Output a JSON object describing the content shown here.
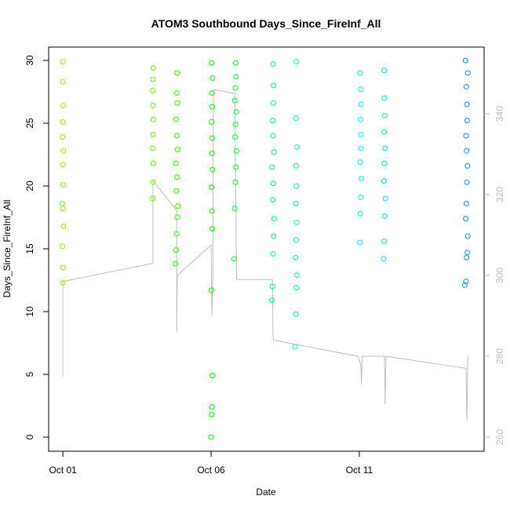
{
  "chart_data": {
    "type": "scatter",
    "title": "ATOM3 Southbound Days_Since_FireInf_All",
    "x_label": "Date",
    "y_label": "Days_Since_FireInf_All",
    "xlim": [
      0.52,
      15.21
    ],
    "xticks": [
      {
        "value": 1,
        "label": "Oct 01"
      },
      {
        "value": 6,
        "label": "Oct 06"
      },
      {
        "value": 11,
        "label": "Oct 11"
      }
    ],
    "ylim": [
      -1.12,
      31.06
    ],
    "yticks": [
      0,
      5,
      10,
      15,
      20,
      25,
      30
    ],
    "y2lim": [
      256.5,
      356.5
    ],
    "y2ticks": [
      260,
      280,
      300,
      320,
      340
    ],
    "groups": [
      {
        "color": "#80ff00",
        "x": [
          1.0,
          1.01,
          0.99,
          1.02,
          1.0,
          0.98,
          1.01,
          1.0,
          1.02,
          0.99,
          1.0,
          1.01,
          1.0,
          1.0
        ],
        "y": [
          12.3,
          13.5,
          15.2,
          16.8,
          18.2,
          18.6,
          20.1,
          21.7,
          22.8,
          23.9,
          25.1,
          26.4,
          28.3,
          29.9
        ]
      },
      {
        "color": "#66ff00",
        "x": [
          4.03,
          4.04,
          4.05,
          4.03,
          4.04,
          4.05,
          4.04,
          4.03,
          4.04,
          4.05
        ],
        "y": [
          19.0,
          20.3,
          21.8,
          23.0,
          24.1,
          25.3,
          26.4,
          27.6,
          28.5,
          29.4
        ]
      },
      {
        "color": "#33ff00",
        "x": [
          4.8,
          4.82,
          4.84,
          4.86,
          4.88,
          4.83,
          4.85,
          4.81,
          4.87,
          4.84,
          4.82,
          4.86,
          4.84,
          4.85
        ],
        "y": [
          13.8,
          14.9,
          16.2,
          17.5,
          18.4,
          19.6,
          20.7,
          21.8,
          22.9,
          24.0,
          25.3,
          26.6,
          27.4,
          29.0
        ]
      },
      {
        "color": "#00ff00",
        "x": [
          6.0,
          6.02,
          6.03,
          6.05,
          6.01,
          6.04,
          6.03,
          6.02,
          6.05,
          6.03,
          6.04,
          6.02,
          6.04,
          6.03,
          6.05,
          6.02
        ],
        "y": [
          0.0,
          1.8,
          2.4,
          4.9,
          11.7,
          16.6,
          18.0,
          19.9,
          21.3,
          22.6,
          23.8,
          25.1,
          26.3,
          27.4,
          28.6,
          29.8
        ]
      },
      {
        "color": "#00ff33",
        "x": [
          6.78,
          6.8,
          6.82,
          6.84,
          6.86,
          6.81,
          6.83,
          6.85,
          6.8,
          6.82,
          6.84,
          6.83
        ],
        "y": [
          14.2,
          18.2,
          20.3,
          21.5,
          22.8,
          23.9,
          24.9,
          25.9,
          26.8,
          27.8,
          28.7,
          29.8
        ]
      },
      {
        "color": "#00ff99",
        "x": [
          8.05,
          8.07,
          8.09,
          8.11,
          8.13,
          8.08,
          8.1,
          8.06,
          8.12,
          8.09,
          8.08,
          8.1,
          8.11,
          8.09
        ],
        "y": [
          10.9,
          12.0,
          14.6,
          16.0,
          17.4,
          18.9,
          20.2,
          21.5,
          22.7,
          24.0,
          25.2,
          26.6,
          28.0,
          29.7
        ]
      },
      {
        "color": "#00ffbf",
        "x": [
          8.83,
          8.86,
          8.88,
          8.9,
          8.85,
          8.87,
          8.89,
          8.86,
          8.88,
          8.87,
          8.9,
          8.86,
          8.88
        ],
        "y": [
          7.2,
          9.8,
          11.9,
          12.9,
          14.3,
          15.7,
          17.1,
          18.6,
          20.0,
          21.6,
          23.1,
          25.4,
          29.9
        ]
      },
      {
        "color": "#00ffff",
        "x": [
          11.02,
          11.04,
          11.05,
          11.07,
          11.03,
          11.06,
          11.05,
          11.04,
          11.06,
          11.05,
          11.03
        ],
        "y": [
          15.5,
          17.8,
          19.1,
          20.6,
          21.9,
          23.0,
          24.1,
          25.3,
          26.5,
          27.7,
          29.0
        ]
      },
      {
        "color": "#00e5ff",
        "x": [
          11.82,
          11.84,
          11.86,
          11.88,
          11.83,
          11.85,
          11.87,
          11.84,
          11.86,
          11.85,
          11.84
        ],
        "y": [
          14.2,
          15.6,
          17.6,
          19.0,
          20.4,
          21.8,
          23.0,
          24.3,
          25.6,
          27.0,
          29.2
        ]
      },
      {
        "color": "#0099ff",
        "x": [
          14.56,
          14.6,
          14.62,
          14.64,
          14.66,
          14.59,
          14.61,
          14.63,
          14.65,
          14.62,
          14.6,
          14.64,
          14.63,
          14.61,
          14.66,
          14.58
        ],
        "y": [
          12.1,
          12.4,
          14.3,
          14.7,
          16.0,
          17.4,
          18.6,
          20.3,
          21.6,
          22.8,
          24.0,
          25.2,
          26.5,
          27.9,
          29.0,
          30.0
        ]
      }
    ],
    "line": {
      "color": "#bebebe",
      "axis": "y2",
      "x": [
        1.0,
        1.0,
        4.04,
        4.04,
        4.84,
        4.84,
        4.86,
        6.0,
        6.03,
        6.06,
        6.08,
        6.8,
        6.84,
        6.86,
        8.07,
        8.09,
        8.1,
        10.95,
        11.05,
        11.07,
        11.1,
        11.85,
        11.87,
        11.9,
        14.6,
        14.63,
        14.66
      ],
      "y": [
        275,
        298.5,
        303,
        323.5,
        316,
        286,
        300,
        307.5,
        290,
        299.5,
        346,
        345,
        312,
        299,
        299,
        285,
        284,
        280,
        278,
        273,
        280,
        280,
        268,
        280,
        277,
        264,
        280
      ]
    }
  }
}
